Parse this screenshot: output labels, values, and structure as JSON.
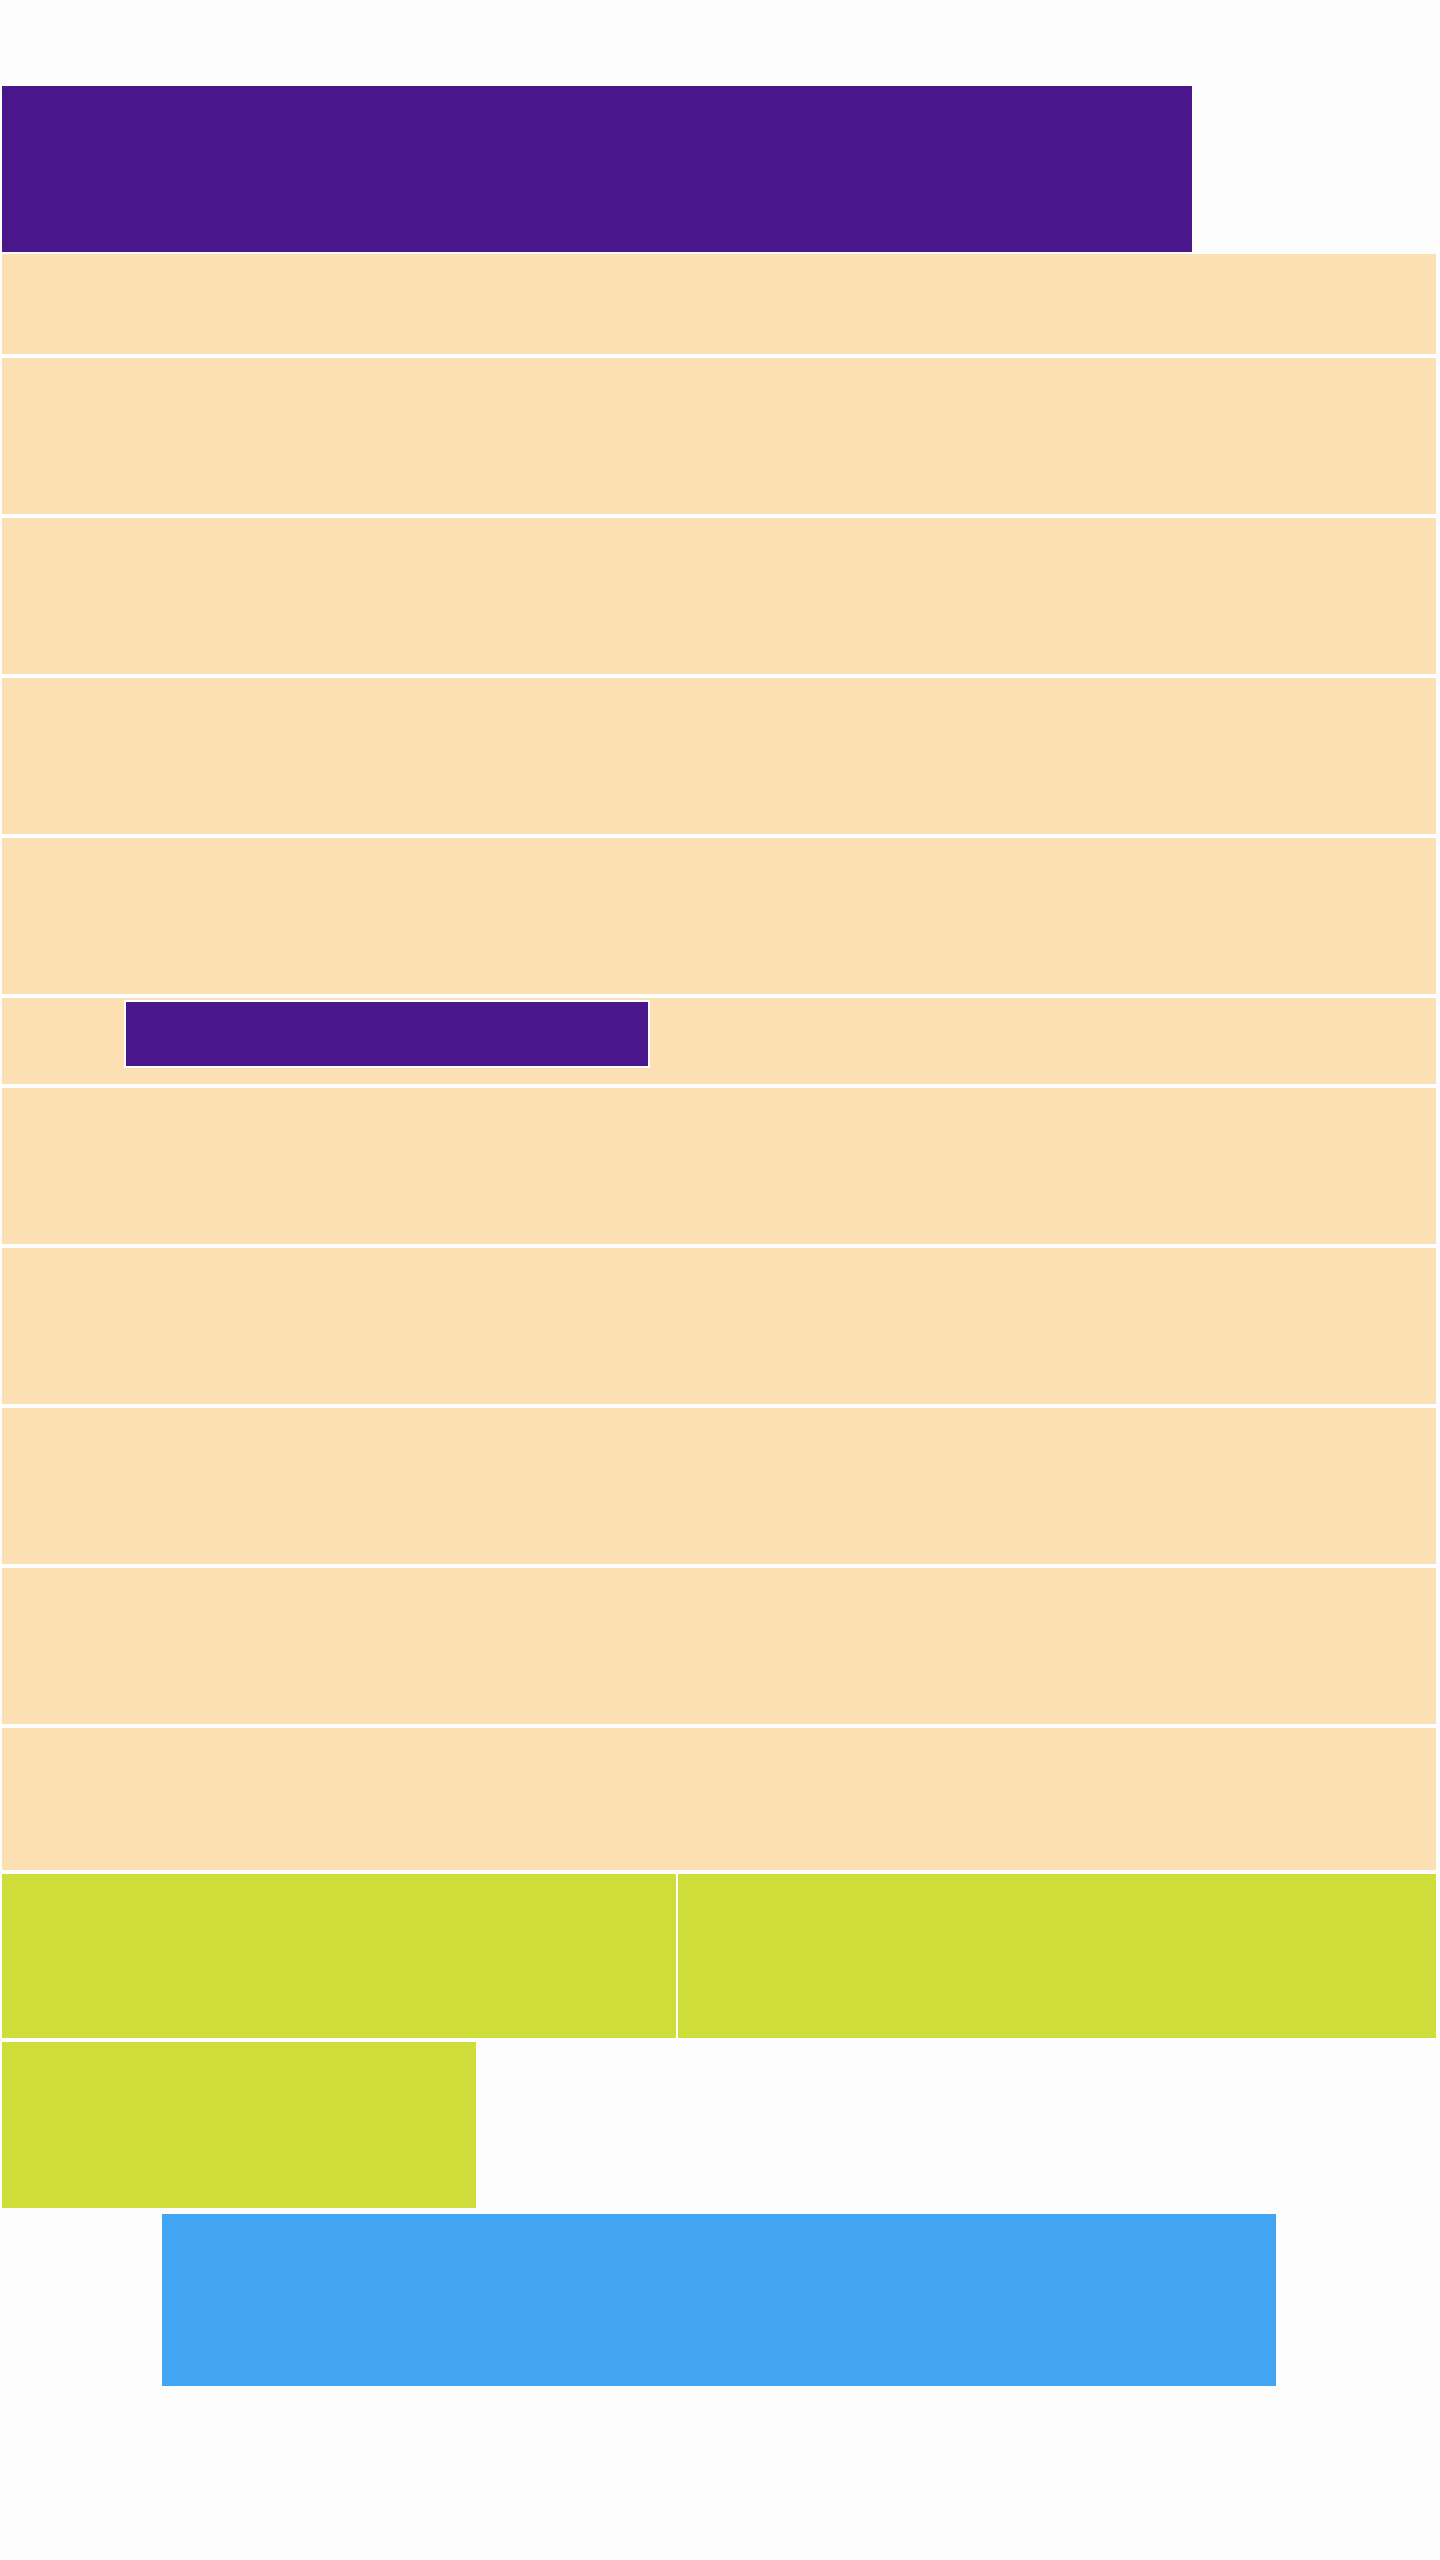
{
  "colors": {
    "banner": "#4a168b",
    "row": "#fcdfb3",
    "tile": "#cedd39",
    "action": "#42a5f4",
    "background": "#fdfdfd"
  },
  "header": {
    "title": ""
  },
  "rows": [
    {
      "label": ""
    },
    {
      "label": ""
    },
    {
      "label": ""
    },
    {
      "label": ""
    },
    {
      "label": ""
    },
    {
      "label": "",
      "button_label": ""
    },
    {
      "label": ""
    },
    {
      "label": ""
    },
    {
      "label": ""
    },
    {
      "label": ""
    },
    {
      "label": ""
    }
  ],
  "tiles": [
    {
      "label": ""
    },
    {
      "label": ""
    },
    {
      "label": ""
    }
  ],
  "action": {
    "label": ""
  }
}
